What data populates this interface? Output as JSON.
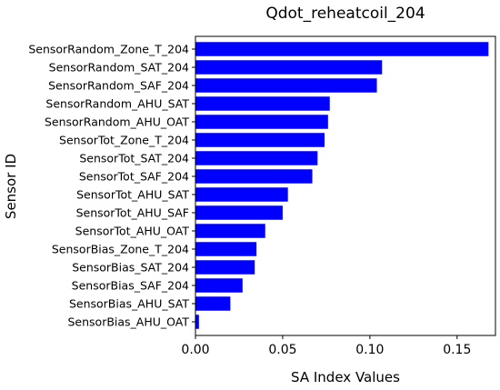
{
  "chart_data": {
    "type": "bar",
    "orientation": "horizontal",
    "title": "Qdot_reheatcoil_204",
    "xlabel": "SA Index Values",
    "ylabel": "Sensor ID",
    "xlim": [
      0.0,
      0.172
    ],
    "xticks": [
      0.0,
      0.05,
      0.1,
      0.15
    ],
    "xtick_labels": [
      "0.00",
      "0.05",
      "0.10",
      "0.15"
    ],
    "bar_color": "#0000ff",
    "grid": false,
    "legend": "none",
    "categories": [
      "SensorRandom_Zone_T_204",
      "SensorRandom_SAT_204",
      "SensorRandom_SAF_204",
      "SensorRandom_AHU_SAT",
      "SensorRandom_AHU_OAT",
      "SensorTot_Zone_T_204",
      "SensorTot_SAT_204",
      "SensorTot_SAF_204",
      "SensorTot_AHU_SAT",
      "SensorTot_AHU_SAF",
      "SensorTot_AHU_OAT",
      "SensorBias_Zone_T_204",
      "SensorBias_SAT_204",
      "SensorBias_SAF_204",
      "SensorBias_AHU_SAT",
      "SensorBias_AHU_OAT"
    ],
    "values": [
      0.168,
      0.107,
      0.104,
      0.077,
      0.076,
      0.074,
      0.07,
      0.067,
      0.053,
      0.05,
      0.04,
      0.035,
      0.034,
      0.027,
      0.02,
      0.002
    ]
  }
}
